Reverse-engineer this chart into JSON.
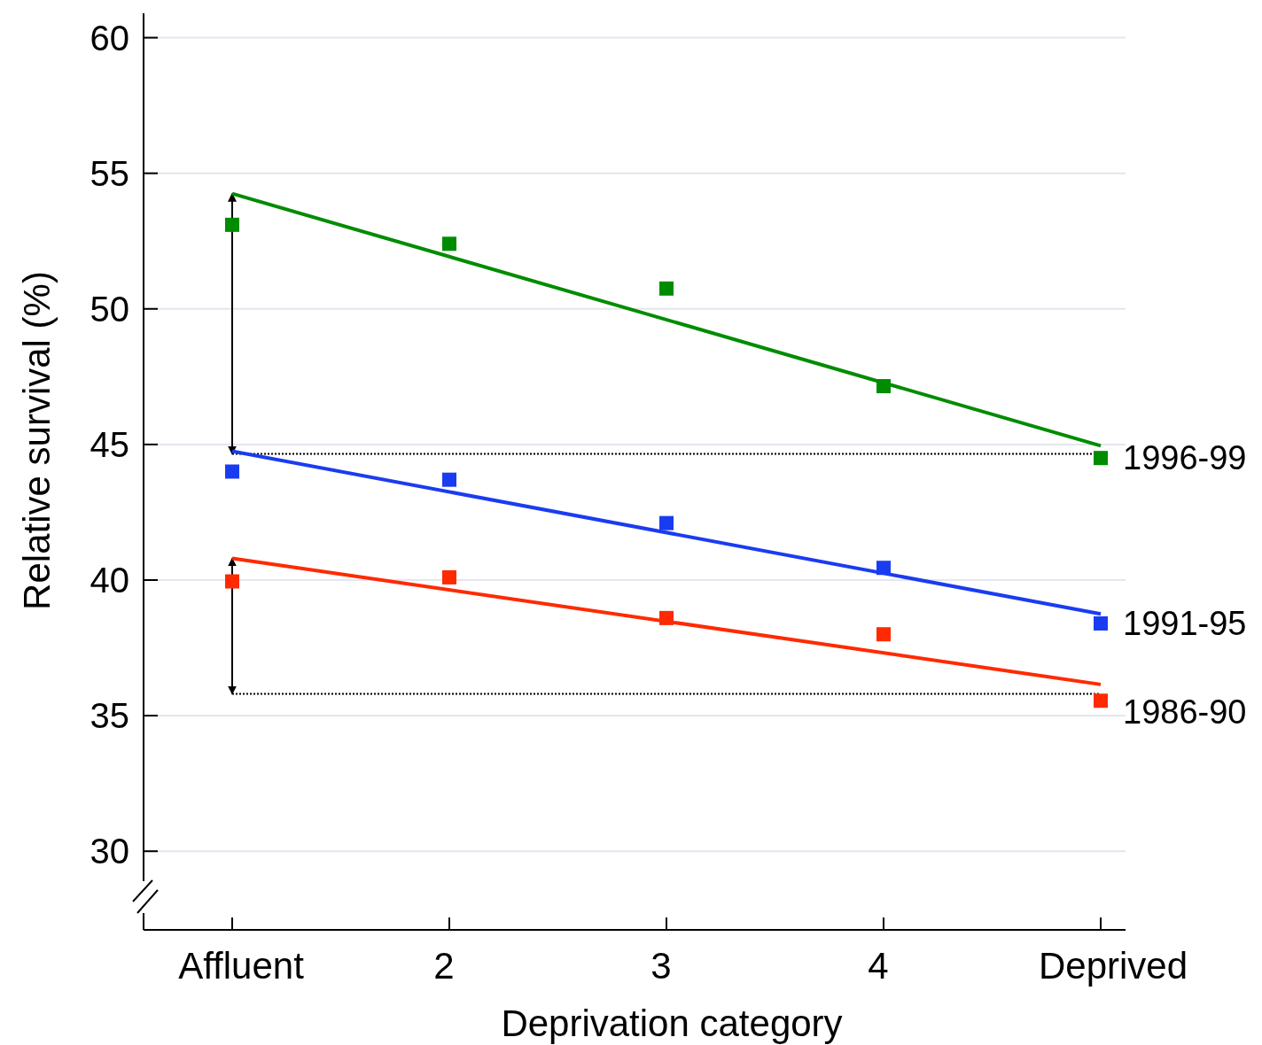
{
  "chart_data": {
    "type": "scatter",
    "xlabel": "Deprivation category",
    "ylabel": "Relative survival (%)",
    "categories": [
      "Affluent",
      "2",
      "3",
      "4",
      "Deprived"
    ],
    "ylim": [
      27.1,
      60.9
    ],
    "yticks": [
      30,
      35,
      40,
      45,
      50,
      55,
      60
    ],
    "grid": "y",
    "legend": false,
    "marker": "square",
    "series": [
      {
        "name": "1996-99",
        "color": "#008c00",
        "values": [
          53.1,
          52.4,
          50.75,
          47.15,
          44.5
        ]
      },
      {
        "name": "1991-95",
        "color": "#1a3cf0",
        "values": [
          44.0,
          43.7,
          42.1,
          40.45,
          38.4
        ]
      },
      {
        "name": "1986-90",
        "color": "#ff2a00",
        "values": [
          39.95,
          40.1,
          38.6,
          38.0,
          35.55
        ]
      },
      {
        "type": "line",
        "marker": "none",
        "color": "#008c00",
        "x": [
          "Affluent",
          "Deprived"
        ],
        "values": [
          54.25,
          44.95
        ]
      },
      {
        "type": "line",
        "marker": "none",
        "color": "#1a3cf0",
        "x": [
          "Affluent",
          "Deprived"
        ],
        "values": [
          44.75,
          38.75
        ]
      },
      {
        "type": "line",
        "marker": "none",
        "color": "#ff2a00",
        "x": [
          "Affluent",
          "Deprived"
        ],
        "values": [
          40.8,
          36.15
        ]
      }
    ],
    "ref_lines": [
      {
        "axis": "y",
        "value": 44.65,
        "color": "#000000",
        "line_style": "dotted"
      },
      {
        "axis": "y",
        "value": 35.8,
        "color": "#000000",
        "line_style": "dotted"
      }
    ]
  }
}
